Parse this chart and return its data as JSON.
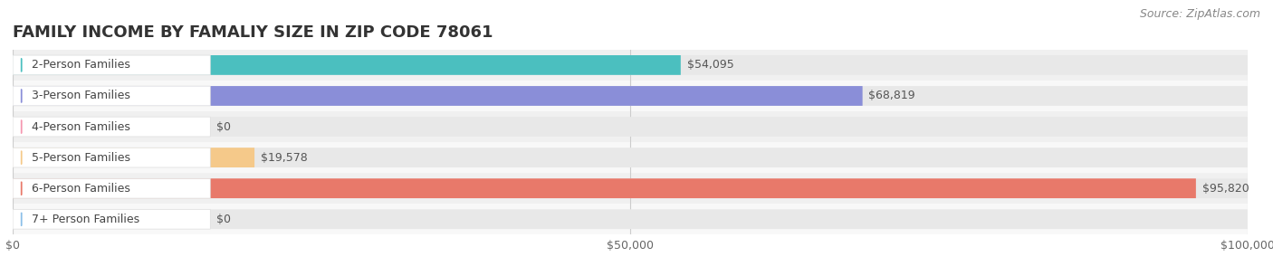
{
  "title": "FAMILY INCOME BY FAMALIY SIZE IN ZIP CODE 78061",
  "source": "Source: ZipAtlas.com",
  "categories": [
    "2-Person Families",
    "3-Person Families",
    "4-Person Families",
    "5-Person Families",
    "6-Person Families",
    "7+ Person Families"
  ],
  "values": [
    54095,
    68819,
    0,
    19578,
    95820,
    0
  ],
  "bar_colors": [
    "#4BBFBF",
    "#8A8ED8",
    "#F597B0",
    "#F5C98A",
    "#E8796A",
    "#8BBFE8"
  ],
  "bar_bg_color": "#EFEFEF",
  "xlim": [
    0,
    100000
  ],
  "xticks": [
    0,
    50000,
    100000
  ],
  "xtick_labels": [
    "$0",
    "$50,000",
    "$100,000"
  ],
  "background_color": "#FFFFFF",
  "row_bg_colors": [
    "#FFFFFF",
    "#F5F5F5"
  ],
  "title_fontsize": 13,
  "label_fontsize": 9,
  "value_fontsize": 9,
  "source_fontsize": 9
}
